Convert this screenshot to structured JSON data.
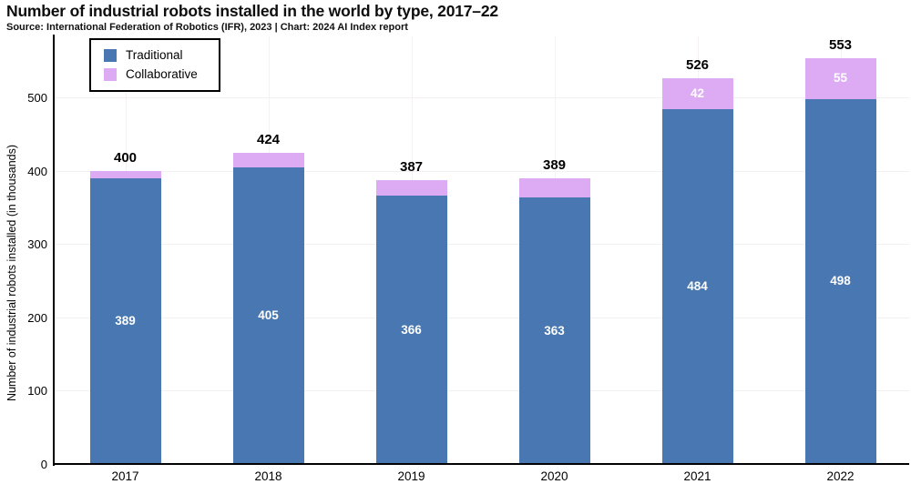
{
  "header": {
    "title": "Number of industrial robots installed in the world by type, 2017–22",
    "source_line": "Source: International Federation of Robotics (IFR), 2023 | Chart: 2024 AI Index report"
  },
  "colors": {
    "traditional": "#4877b2",
    "collaborative": "#dcabf3",
    "grid_h": "#f4f0f1",
    "grid_v": "#f6f2f3",
    "axis": "#000000",
    "segment_label": "#ffffff",
    "total_label": "#000000"
  },
  "legend": {
    "items": [
      {
        "label": "Traditional",
        "color": "#4877b2"
      },
      {
        "label": "Collaborative",
        "color": "#dcabf3"
      }
    ]
  },
  "chart_data": {
    "type": "bar",
    "stacked": true,
    "title": "Number of industrial robots installed in the world by type, 2017–22",
    "categories": [
      "2017",
      "2018",
      "2019",
      "2020",
      "2021",
      "2022"
    ],
    "series": [
      {
        "name": "Traditional",
        "color": "#4877b2",
        "values": [
          389,
          405,
          366,
          363,
          484,
          498
        ]
      },
      {
        "name": "Collaborative",
        "color": "#dcabf3",
        "values": [
          11,
          19,
          21,
          26,
          42,
          55
        ]
      }
    ],
    "totals": [
      400,
      424,
      387,
      389,
      526,
      553
    ],
    "segment_labels": {
      "traditional": [
        "389",
        "405",
        "366",
        "363",
        "484",
        "498"
      ],
      "collaborative": [
        "",
        "",
        "",
        "",
        "42",
        "55"
      ]
    },
    "xlabel": "",
    "ylabel": "Number of industrial robots installed (in thousands)",
    "ylim": [
      0,
      560
    ],
    "yticks": [
      0,
      100,
      200,
      300,
      400,
      500
    ],
    "grid": true,
    "legend_position": "top-left"
  }
}
